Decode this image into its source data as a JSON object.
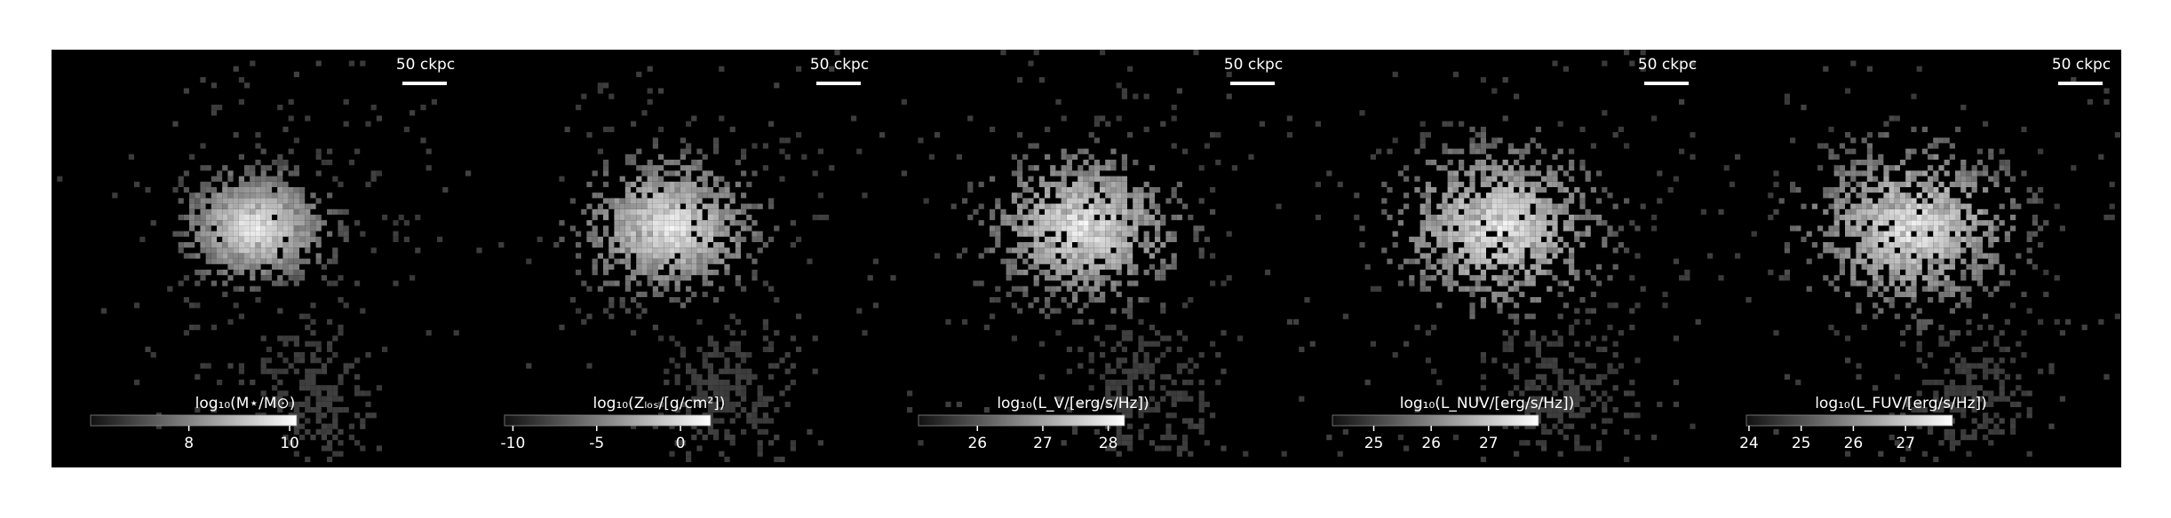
{
  "chart_data": [
    {
      "type": "image",
      "scale_bar": "50 ckpc",
      "colorbar_label": "log₁₀(M⋆/M⊙)",
      "xlim": [
        6.05,
        10.14
      ],
      "xticks": [
        8,
        10
      ],
      "spread": 0.8
    },
    {
      "type": "image",
      "scale_bar": "50 ckpc",
      "colorbar_label": "log₁₀(Zₗₒₛ/[g/cm²])",
      "xlim": [
        -10.5,
        1.8
      ],
      "xticks": [
        -10,
        -5,
        0
      ],
      "spread": 1.0
    },
    {
      "type": "image",
      "scale_bar": "50 ckpc",
      "colorbar_label": "log₁₀(L_V/[erg/s/Hz])",
      "xlim": [
        25.1,
        28.25
      ],
      "xticks": [
        26,
        27,
        28
      ],
      "spread": 1.1
    },
    {
      "type": "image",
      "scale_bar": "50 ckpc",
      "colorbar_label": "log₁₀(L_NUV/[erg/s/Hz])",
      "xlim": [
        24.28,
        27.87
      ],
      "xticks": [
        25,
        26,
        27
      ],
      "spread": 1.2
    },
    {
      "type": "image",
      "scale_bar": "50 ckpc",
      "colorbar_label": "log₁₀(L_FUV/[erg/s/Hz])",
      "xlim": [
        23.95,
        27.9
      ],
      "xticks": [
        24,
        25,
        26,
        27
      ],
      "spread": 1.2
    }
  ]
}
